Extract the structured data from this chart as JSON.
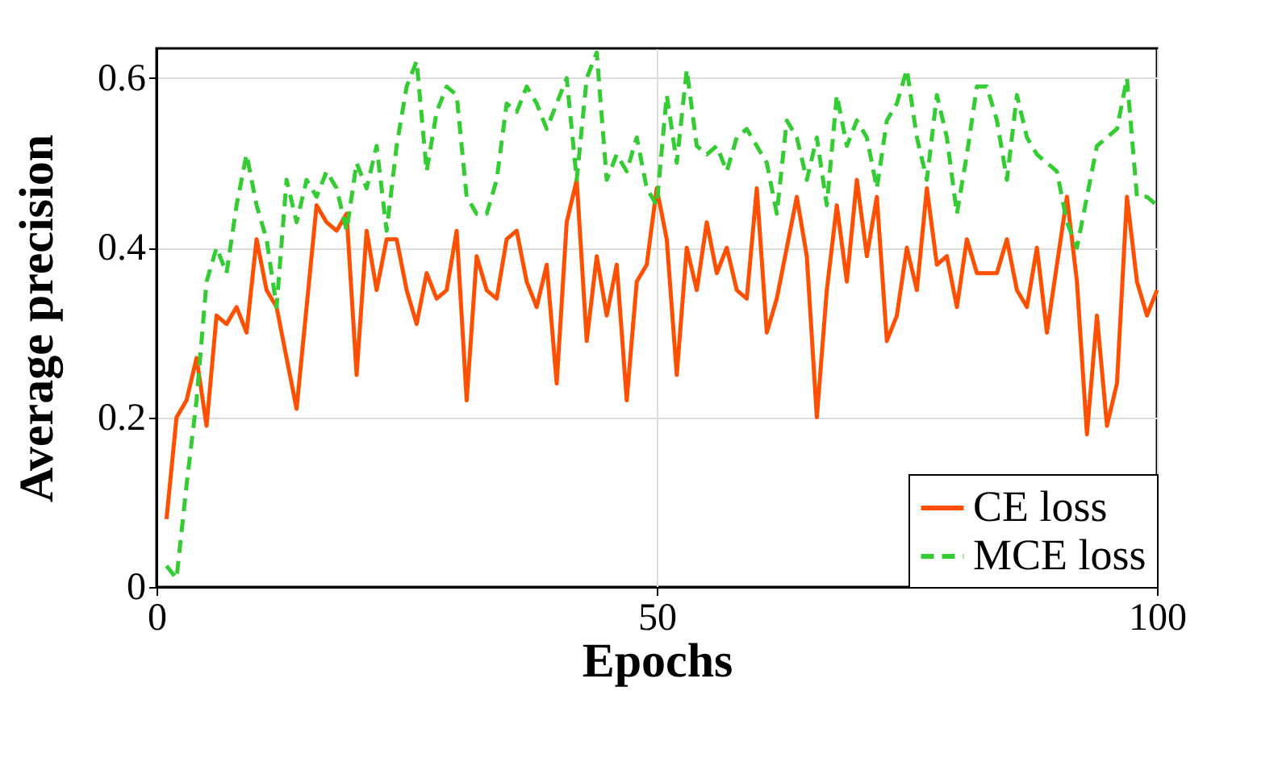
{
  "chart_data": {
    "type": "line",
    "xlabel": "Epochs",
    "ylabel": "Average precision",
    "x": [
      1,
      2,
      3,
      4,
      5,
      6,
      7,
      8,
      9,
      10,
      11,
      12,
      13,
      14,
      15,
      16,
      17,
      18,
      19,
      20,
      21,
      22,
      23,
      24,
      25,
      26,
      27,
      28,
      29,
      30,
      31,
      32,
      33,
      34,
      35,
      36,
      37,
      38,
      39,
      40,
      41,
      42,
      43,
      44,
      45,
      46,
      47,
      48,
      49,
      50,
      51,
      52,
      53,
      54,
      55,
      56,
      57,
      58,
      59,
      60,
      61,
      62,
      63,
      64,
      65,
      66,
      67,
      68,
      69,
      70,
      71,
      72,
      73,
      74,
      75,
      76,
      77,
      78,
      79,
      80,
      81,
      82,
      83,
      84,
      85,
      86,
      87,
      88,
      89,
      90,
      91,
      92,
      93,
      94,
      95,
      96,
      97,
      98,
      99,
      100
    ],
    "series": [
      {
        "name": "CE loss",
        "color": "#ff4f00",
        "line_style": "solid",
        "values": [
          0.08,
          0.2,
          0.22,
          0.27,
          0.19,
          0.32,
          0.31,
          0.33,
          0.3,
          0.41,
          0.35,
          0.33,
          0.27,
          0.21,
          0.33,
          0.45,
          0.43,
          0.42,
          0.44,
          0.25,
          0.42,
          0.35,
          0.41,
          0.41,
          0.35,
          0.31,
          0.37,
          0.34,
          0.35,
          0.42,
          0.22,
          0.39,
          0.35,
          0.34,
          0.41,
          0.42,
          0.36,
          0.33,
          0.38,
          0.24,
          0.43,
          0.48,
          0.29,
          0.39,
          0.32,
          0.38,
          0.22,
          0.36,
          0.38,
          0.47,
          0.41,
          0.25,
          0.4,
          0.35,
          0.43,
          0.37,
          0.4,
          0.35,
          0.34,
          0.47,
          0.3,
          0.34,
          0.4,
          0.46,
          0.39,
          0.2,
          0.35,
          0.45,
          0.36,
          0.48,
          0.39,
          0.46,
          0.29,
          0.32,
          0.4,
          0.35,
          0.47,
          0.38,
          0.39,
          0.33,
          0.41,
          0.37,
          0.37,
          0.37,
          0.41,
          0.35,
          0.33,
          0.4,
          0.3,
          0.38,
          0.46,
          0.36,
          0.18,
          0.32,
          0.19,
          0.24,
          0.46,
          0.36,
          0.32,
          0.35
        ]
      },
      {
        "name": "MCE loss",
        "color": "#33cc33",
        "line_style": "dashed",
        "values": [
          0.025,
          0.01,
          0.12,
          0.22,
          0.36,
          0.4,
          0.37,
          0.45,
          0.51,
          0.45,
          0.41,
          0.33,
          0.48,
          0.43,
          0.48,
          0.46,
          0.49,
          0.47,
          0.42,
          0.5,
          0.47,
          0.52,
          0.42,
          0.52,
          0.59,
          0.62,
          0.49,
          0.56,
          0.59,
          0.58,
          0.46,
          0.44,
          0.44,
          0.48,
          0.57,
          0.56,
          0.59,
          0.57,
          0.54,
          0.57,
          0.6,
          0.48,
          0.6,
          0.63,
          0.48,
          0.51,
          0.49,
          0.53,
          0.47,
          0.45,
          0.58,
          0.5,
          0.61,
          0.52,
          0.51,
          0.52,
          0.49,
          0.53,
          0.54,
          0.52,
          0.5,
          0.44,
          0.55,
          0.53,
          0.48,
          0.53,
          0.45,
          0.58,
          0.52,
          0.55,
          0.53,
          0.47,
          0.55,
          0.57,
          0.61,
          0.53,
          0.48,
          0.58,
          0.53,
          0.44,
          0.51,
          0.59,
          0.59,
          0.55,
          0.48,
          0.58,
          0.53,
          0.51,
          0.5,
          0.49,
          0.43,
          0.4,
          0.46,
          0.52,
          0.53,
          0.54,
          0.6,
          0.46,
          0.46,
          0.45
        ]
      }
    ],
    "xlim": [
      0,
      100
    ],
    "xticks": [
      0,
      50,
      100
    ],
    "ylim": [
      0,
      0.635
    ],
    "yticks": [
      0,
      0.2,
      0.4,
      0.6
    ],
    "grid": true,
    "legend": "bottom right"
  }
}
